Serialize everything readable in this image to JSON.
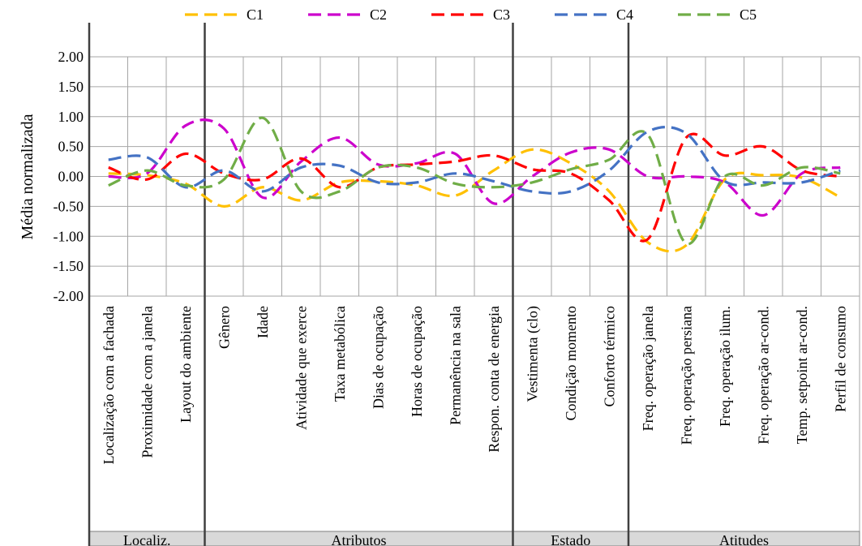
{
  "chart_data": {
    "type": "line",
    "ylabel": "Média normalizada",
    "xlabel": "",
    "ylim": [
      -2.0,
      2.0
    ],
    "yticks": [
      "2.00",
      "1.50",
      "1.00",
      "0.50",
      "0.00",
      "-0.50",
      "-1.00",
      "-1.50",
      "-2.00"
    ],
    "grid": true,
    "legend_position": "top",
    "categories": [
      "Localização com a fachada",
      "Proximidade com a janela",
      "Layout do ambiente",
      "Gênero",
      "Idade",
      "Atividade que exerce",
      "Taxa metabólica",
      "Dias de ocupação",
      "Horas de ocupação",
      "Permanência na sala",
      "Respon. conta de energia",
      "Vestimenta (clo)",
      "Condição momento",
      "Conforto térmico",
      "Freq. operação janela",
      "Freq. operação persiana",
      "Freq. operação ilum.",
      "Freq. operação ar-cond.",
      "Temp. setpoint ar-cond.",
      "Perfil de consumo"
    ],
    "groups": [
      {
        "label": "Localiz.",
        "start": 0,
        "end": 2
      },
      {
        "label": "Atributos",
        "start": 3,
        "end": 10
      },
      {
        "label": "Estado",
        "start": 11,
        "end": 13
      },
      {
        "label": "Atitudes",
        "start": 14,
        "end": 19
      }
    ],
    "series": [
      {
        "name": "C1",
        "color": "#FFC000",
        "values": [
          0.05,
          0.02,
          -0.12,
          -0.5,
          -0.18,
          -0.4,
          -0.1,
          -0.08,
          -0.15,
          -0.32,
          0.1,
          0.45,
          0.22,
          -0.25,
          -1.1,
          -1.15,
          -0.05,
          0.02,
          -0.02,
          -0.35
        ]
      },
      {
        "name": "C2",
        "color": "#CC00CC",
        "values": [
          0.0,
          0.05,
          0.85,
          0.8,
          -0.35,
          0.25,
          0.65,
          0.2,
          0.22,
          0.38,
          -0.45,
          0.0,
          0.4,
          0.45,
          0.0,
          0.0,
          -0.1,
          -0.65,
          0.05,
          0.15
        ]
      },
      {
        "name": "C3",
        "color": "#FF0000",
        "values": [
          0.15,
          -0.05,
          0.38,
          0.05,
          -0.05,
          0.3,
          -0.18,
          0.15,
          0.2,
          0.25,
          0.35,
          0.12,
          0.05,
          -0.4,
          -1.05,
          0.65,
          0.35,
          0.5,
          0.1,
          0.0
        ]
      },
      {
        "name": "C4",
        "color": "#4472C4",
        "values": [
          0.28,
          0.32,
          -0.18,
          0.1,
          -0.25,
          0.15,
          0.18,
          -0.1,
          -0.1,
          0.05,
          -0.08,
          -0.25,
          -0.25,
          0.1,
          0.75,
          0.72,
          -0.08,
          -0.1,
          -0.1,
          0.1
        ]
      },
      {
        "name": "C5",
        "color": "#70AD47",
        "values": [
          -0.15,
          0.1,
          -0.15,
          -0.05,
          0.98,
          -0.25,
          -0.25,
          0.15,
          0.15,
          -0.12,
          -0.18,
          -0.1,
          0.12,
          0.28,
          0.7,
          -1.12,
          0.0,
          -0.15,
          0.15,
          0.05
        ]
      }
    ]
  }
}
